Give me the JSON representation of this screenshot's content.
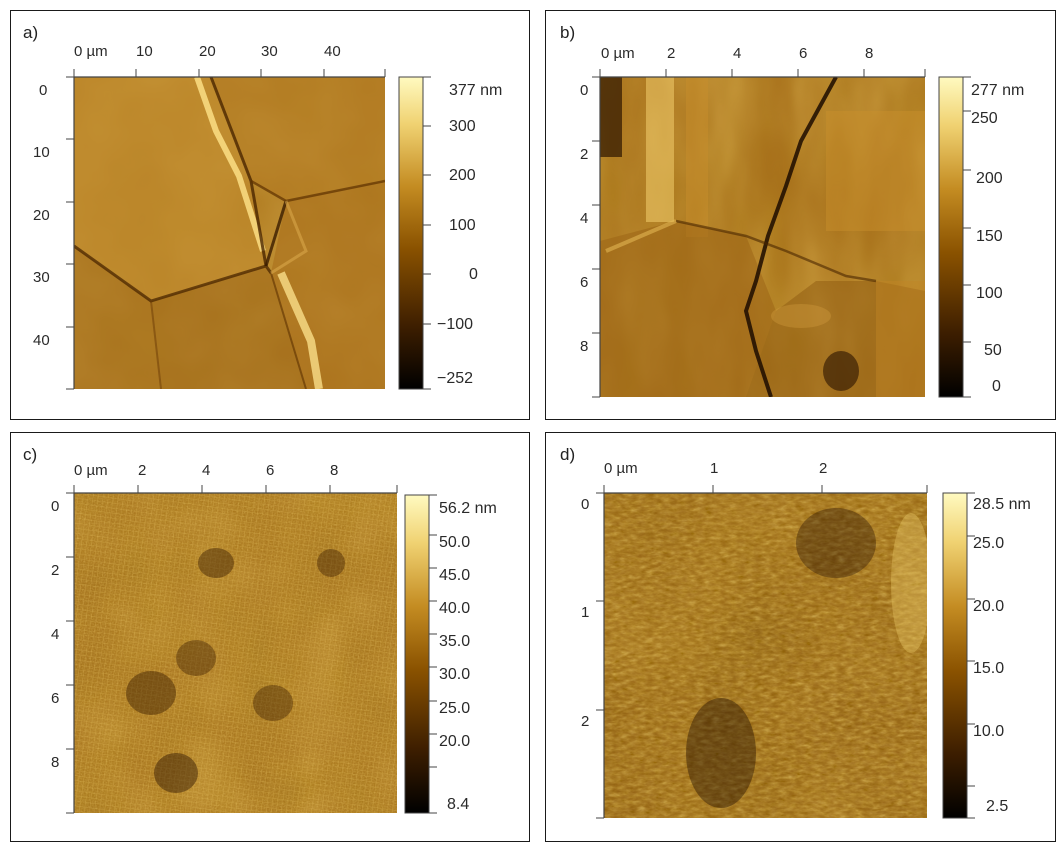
{
  "panels": [
    {
      "id": "a",
      "label": "a)",
      "x_ticks": [
        "0 µm",
        "10",
        "20",
        "30",
        "40"
      ],
      "y_ticks": [
        "0",
        "10",
        "20",
        "30",
        "40"
      ],
      "colorbar_ticks": [
        "377 nm",
        "300",
        "200",
        "100",
        "0",
        "−100",
        "−252"
      ],
      "colorbar_range_nm": [
        -252,
        377
      ],
      "texture": "large-grains"
    },
    {
      "id": "b",
      "label": "b)",
      "x_ticks": [
        "0 µm",
        "2",
        "4",
        "6",
        "8"
      ],
      "y_ticks": [
        "0",
        "2",
        "4",
        "6",
        "8"
      ],
      "colorbar_ticks": [
        "277 nm",
        "250",
        "200",
        "150",
        "100",
        "50",
        "0"
      ],
      "colorbar_range_nm": [
        0,
        277
      ],
      "texture": "grain-boundary"
    },
    {
      "id": "c",
      "label": "c)",
      "x_ticks": [
        "0 µm",
        "2",
        "4",
        "6",
        "8"
      ],
      "y_ticks": [
        "0",
        "2",
        "4",
        "6",
        "8"
      ],
      "colorbar_ticks": [
        "56.2 nm",
        "50.0",
        "45.0",
        "40.0",
        "35.0",
        "30.0",
        "25.0",
        "20.0",
        "8.4"
      ],
      "colorbar_range_nm": [
        8.4,
        56.2
      ],
      "texture": "fine-grid"
    },
    {
      "id": "d",
      "label": "d)",
      "x_ticks": [
        "0 µm",
        "1",
        "2"
      ],
      "y_ticks": [
        "0",
        "1",
        "2"
      ],
      "colorbar_ticks": [
        "28.5 nm",
        "25.0",
        "20.0",
        "15.0",
        "10.0",
        "2.5"
      ],
      "colorbar_range_nm": [
        2.5,
        28.5
      ],
      "texture": "granular"
    }
  ],
  "colormap": {
    "name": "afm-gold",
    "stops": [
      "#000000",
      "#3d1e00",
      "#8a5200",
      "#c48c22",
      "#f0d272",
      "#fffac0"
    ]
  }
}
